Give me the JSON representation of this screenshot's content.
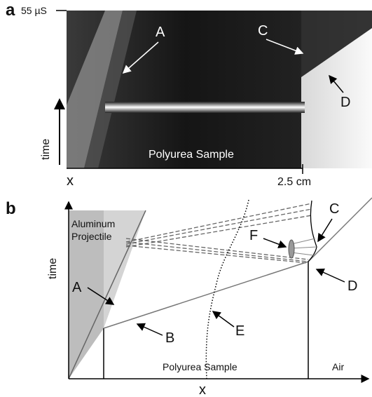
{
  "panel_a": {
    "label": "a",
    "time_marker": "55 µS",
    "annotations": [
      "A",
      "C",
      "D"
    ],
    "y_axis_label": "time",
    "x_axis_label": "x",
    "sample_label": "Polyurea Sample",
    "distance_label": "2.5 cm"
  },
  "panel_b": {
    "label": "b",
    "projectile_label": [
      "Aluminum",
      "Projectile"
    ],
    "annotations": [
      "A",
      "B",
      "C",
      "D",
      "E",
      "F"
    ],
    "y_axis_label": "time",
    "x_axis_label": "x",
    "sample_label": "Polyurea Sample",
    "air_label": "Air"
  }
}
